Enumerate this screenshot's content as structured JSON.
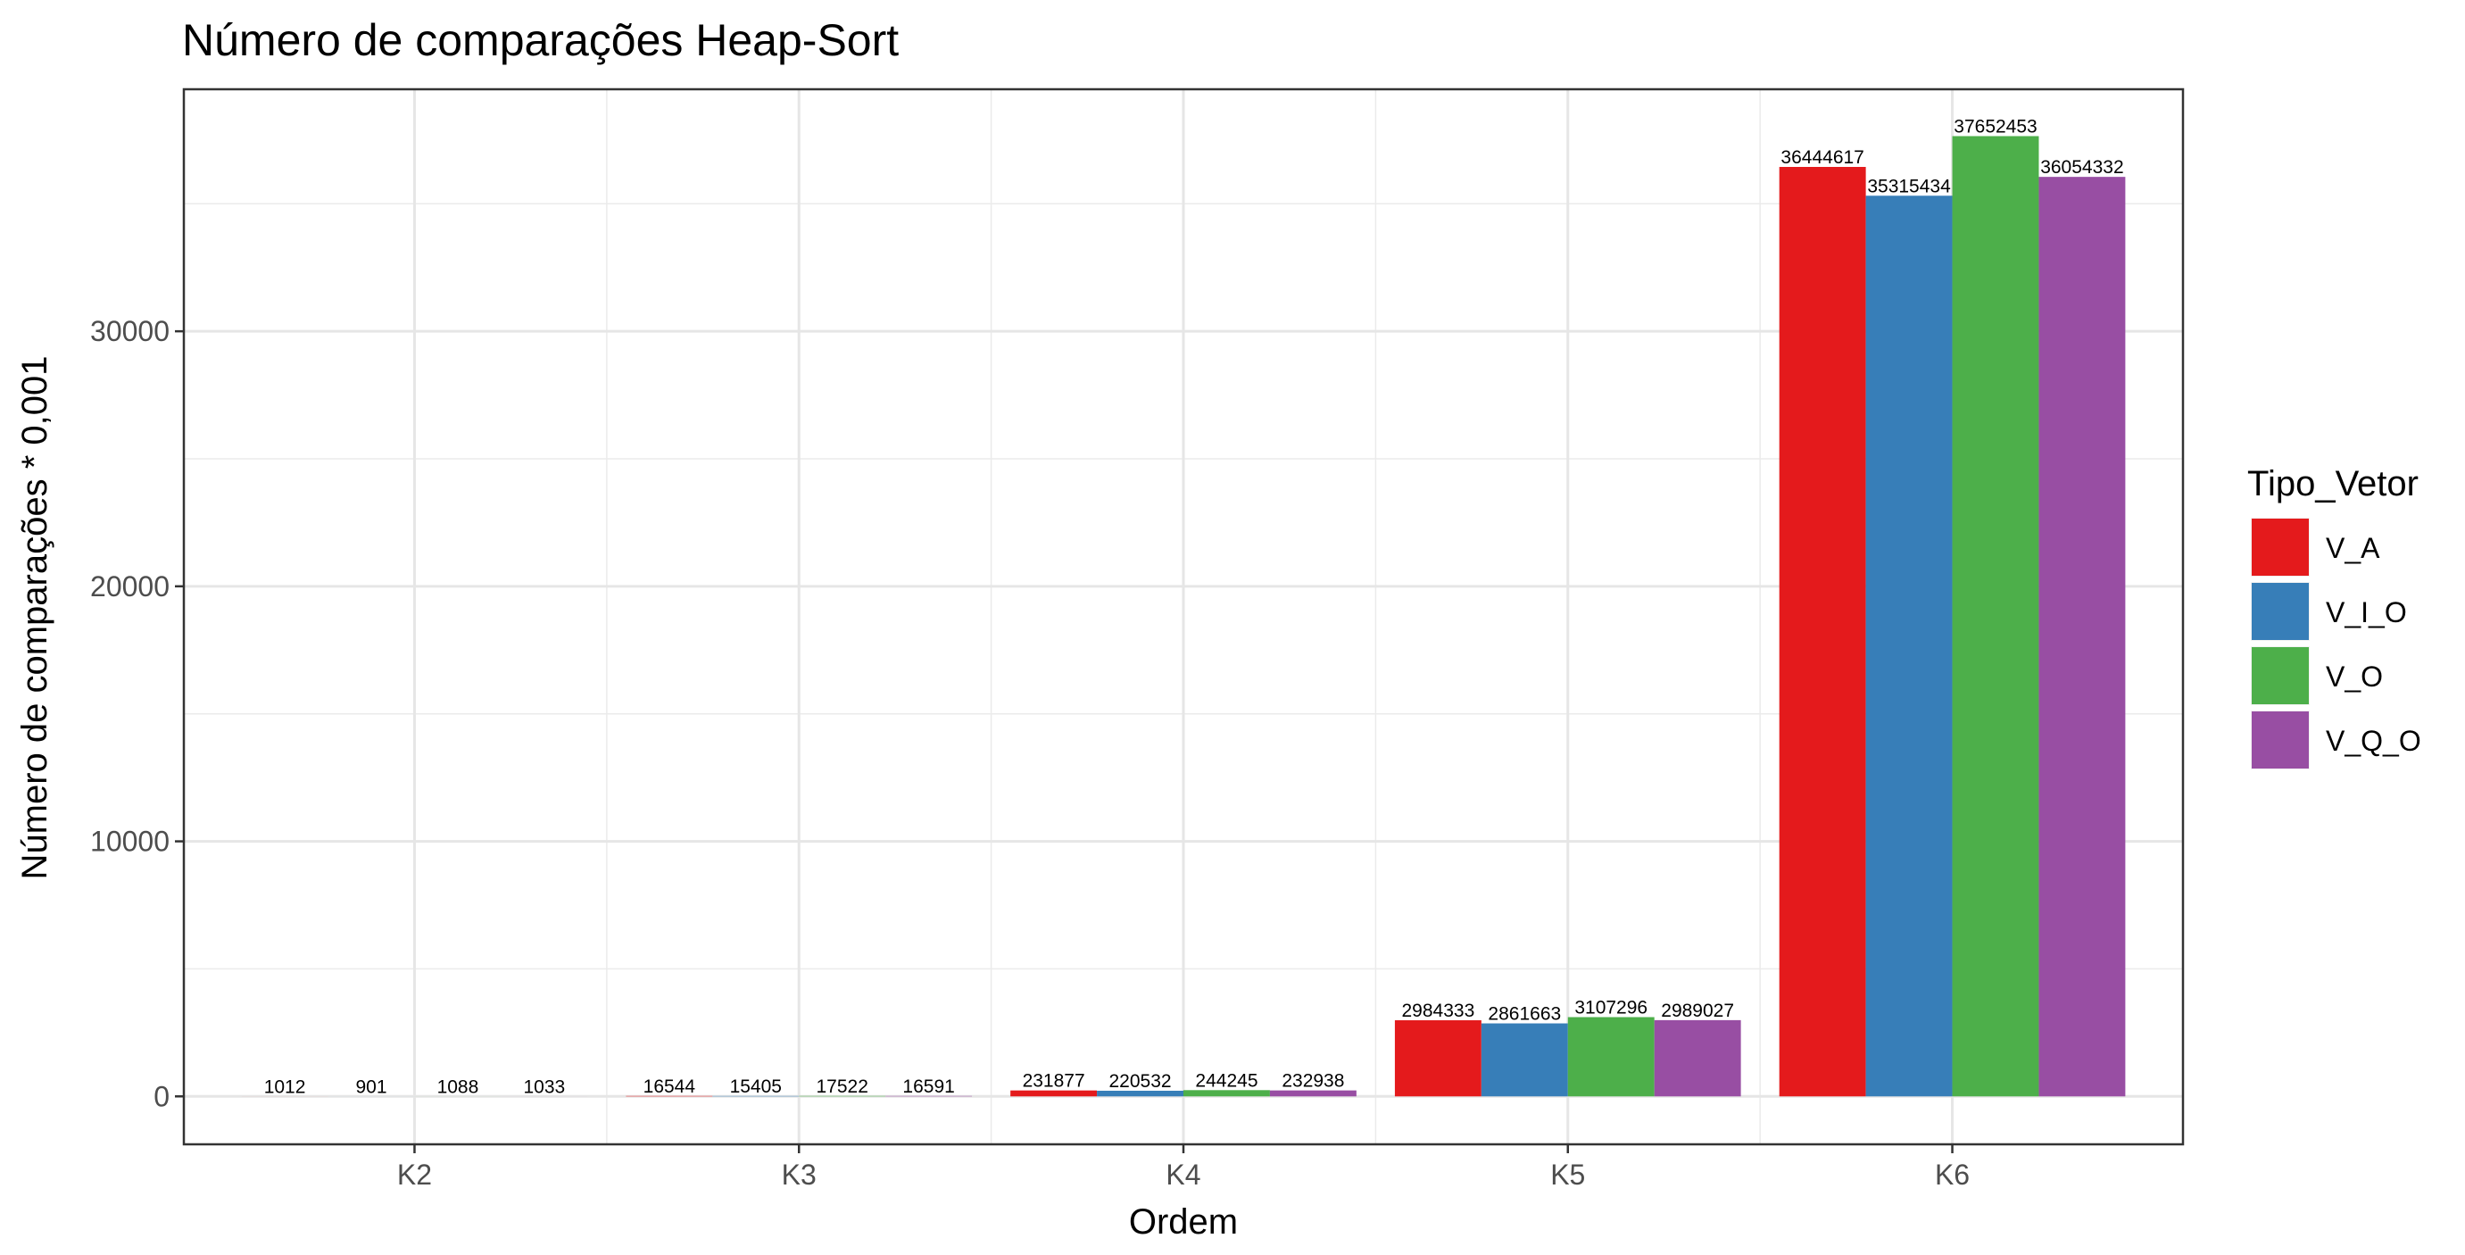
{
  "chart_data": {
    "type": "bar",
    "title": "Número de comparações Heap-Sort",
    "xlabel": "Ordem",
    "ylabel": "Número de comparações * 0,001",
    "categories": [
      "K2",
      "K3",
      "K4",
      "K5",
      "K6"
    ],
    "y_ticks": [
      0,
      10000,
      20000,
      30000
    ],
    "ylim": [
      -1880,
      39490
    ],
    "grid": true,
    "legend": {
      "title": "Tipo_Vetor",
      "position": "right"
    },
    "series": [
      {
        "name": "V_A",
        "color": "#e41a1c",
        "values": [
          1.012,
          16.544,
          231.877,
          2984.333,
          36444.617
        ],
        "labels": [
          "1012",
          "16544",
          "231877",
          "2984333",
          "36444617"
        ]
      },
      {
        "name": "V_I_O",
        "color": "#377eb8",
        "values": [
          0.901,
          15.405,
          220.532,
          2861.663,
          35315.434
        ],
        "labels": [
          "901",
          "15405",
          "220532",
          "2861663",
          "35315434"
        ]
      },
      {
        "name": "V_O",
        "color": "#4daf4a",
        "values": [
          1.088,
          17.522,
          244.245,
          3107.296,
          37652.453
        ],
        "labels": [
          "1088",
          "17522",
          "244245",
          "3107296",
          "37652453"
        ]
      },
      {
        "name": "V_Q_O",
        "color": "#984ea3",
        "values": [
          1.033,
          16.591,
          232.938,
          2989.027,
          36054.332
        ],
        "labels": [
          "1033",
          "16591",
          "232938",
          "2989027",
          "36054332"
        ]
      }
    ]
  }
}
